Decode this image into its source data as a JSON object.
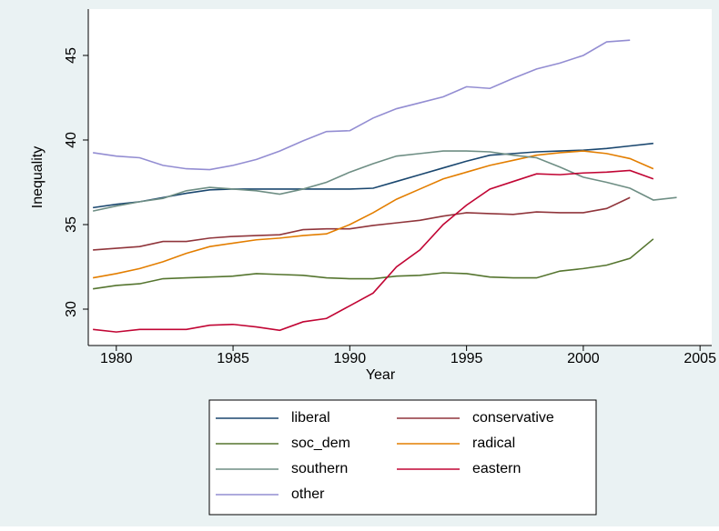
{
  "chart_data": {
    "type": "line",
    "x_label": "Year",
    "y_label": "Inequality",
    "x": [
      1979,
      1980,
      1981,
      1982,
      1983,
      1984,
      1985,
      1986,
      1987,
      1988,
      1989,
      1990,
      1991,
      1992,
      1993,
      1994,
      1995,
      1996,
      1997,
      1998,
      1999,
      2000,
      2001,
      2002,
      2003,
      2004
    ],
    "xlim": [
      1978.8,
      2005.5
    ],
    "xticks": [
      1980,
      1985,
      1990,
      1995,
      2000,
      2005
    ],
    "ylim": [
      27.85,
      47.74
    ],
    "yticks": [
      30,
      35,
      40,
      45
    ],
    "series": [
      {
        "name": "liberal",
        "color": "#1a476f",
        "values": [
          36.0,
          36.2,
          36.35,
          36.6,
          36.85,
          37.05,
          37.1,
          37.1,
          37.1,
          37.1,
          37.1,
          37.1,
          37.15,
          37.55,
          37.95,
          38.35,
          38.75,
          39.1,
          39.2,
          39.3,
          39.35,
          39.4,
          39.5,
          39.65,
          39.8,
          null
        ]
      },
      {
        "name": "conservative",
        "color": "#90353b",
        "values": [
          33.5,
          33.6,
          33.7,
          34.0,
          34.0,
          34.2,
          34.3,
          34.35,
          34.4,
          34.7,
          34.75,
          34.75,
          34.95,
          35.1,
          35.25,
          35.5,
          35.7,
          35.65,
          35.6,
          35.75,
          35.7,
          35.7,
          35.95,
          36.6,
          null,
          null
        ]
      },
      {
        "name": "soc_dem",
        "color": "#55752f",
        "values": [
          31.2,
          31.4,
          31.5,
          31.8,
          31.85,
          31.9,
          31.95,
          32.1,
          32.05,
          32.0,
          31.85,
          31.8,
          31.8,
          31.95,
          32.0,
          32.15,
          32.1,
          31.9,
          31.85,
          31.85,
          32.25,
          32.4,
          32.6,
          33.0,
          34.15,
          null
        ]
      },
      {
        "name": "radical",
        "color": "#e37e00",
        "values": [
          31.85,
          32.1,
          32.4,
          32.8,
          33.3,
          33.7,
          33.9,
          34.1,
          34.2,
          34.35,
          34.45,
          35.0,
          35.7,
          36.5,
          37.1,
          37.7,
          38.1,
          38.5,
          38.8,
          39.1,
          39.25,
          39.35,
          39.2,
          38.9,
          38.3,
          null
        ]
      },
      {
        "name": "southern",
        "color": "#6e8e84",
        "values": [
          35.8,
          36.1,
          36.35,
          36.55,
          37.0,
          37.2,
          37.1,
          37.0,
          36.8,
          37.1,
          37.5,
          38.1,
          38.6,
          39.05,
          39.2,
          39.35,
          39.35,
          39.3,
          39.1,
          38.95,
          38.4,
          37.8,
          37.5,
          37.15,
          36.45,
          36.6
        ]
      },
      {
        "name": "eastern",
        "color": "#c10534",
        "values": [
          28.8,
          28.65,
          28.8,
          28.8,
          28.8,
          29.05,
          29.1,
          28.95,
          28.75,
          29.25,
          29.45,
          30.2,
          30.95,
          32.5,
          33.5,
          35.0,
          36.15,
          37.1,
          37.55,
          38.0,
          37.95,
          38.05,
          38.1,
          38.2,
          37.7,
          null
        ]
      },
      {
        "name": "other",
        "color": "#938dd2",
        "values": [
          39.25,
          39.05,
          38.95,
          38.5,
          38.3,
          38.25,
          38.5,
          38.85,
          39.35,
          39.95,
          40.5,
          40.55,
          41.3,
          41.85,
          42.2,
          42.55,
          43.15,
          43.05,
          43.65,
          44.2,
          44.55,
          45.0,
          45.8,
          45.9,
          null,
          null
        ]
      }
    ]
  }
}
